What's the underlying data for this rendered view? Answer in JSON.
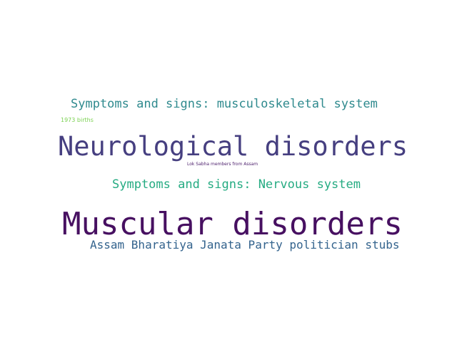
{
  "words": [
    {
      "text": "Symptoms and signs: musculoskeletal system",
      "color": "#2f8a8e"
    },
    {
      "text": "1973 births",
      "color": "#7ad151"
    },
    {
      "text": "Neurological disorders",
      "color": "#463f80"
    },
    {
      "text": "Lok Sabha members from Assam",
      "color": "#4b1d6b"
    },
    {
      "text": "Symptoms and signs: Nervous system",
      "color": "#25ab82"
    },
    {
      "text": "Muscular disorders",
      "color": "#471061"
    },
    {
      "text": "Assam Bharatiya Janata Party politician stubs",
      "color": "#33638d"
    }
  ]
}
